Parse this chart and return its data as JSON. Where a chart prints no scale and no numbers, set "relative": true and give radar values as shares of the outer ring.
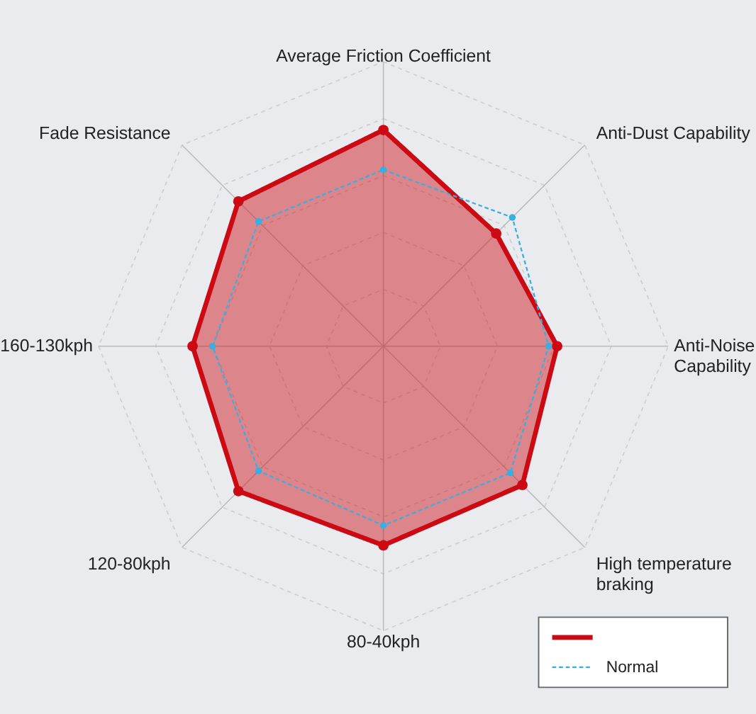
{
  "chart_data": {
    "type": "radar",
    "relative": true,
    "grid": true,
    "legend": "bottom right",
    "categories": [
      "Average Friction Coefficient",
      "Anti-Dust Capability",
      "Anti-Noise\nCapability",
      "High temperature\nbraking",
      "80-40kph",
      "120-80kph",
      "160-130kph",
      "Fade Resistance"
    ],
    "series": [
      {
        "color": "#cc0a14",
        "values": [
          0.76,
          0.56,
          0.61,
          0.69,
          0.7,
          0.72,
          0.67,
          0.72
        ],
        "marker": "circle",
        "line_style": "solid"
      },
      {
        "name": "Normal",
        "color": "#3aaee0",
        "values": [
          0.62,
          0.64,
          0.58,
          0.63,
          0.63,
          0.62,
          0.6,
          0.62
        ],
        "marker": "circle",
        "line_style": "dashed"
      }
    ]
  }
}
